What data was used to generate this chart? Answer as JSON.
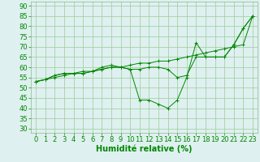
{
  "x": [
    0,
    1,
    2,
    3,
    4,
    5,
    6,
    7,
    8,
    9,
    10,
    11,
    12,
    13,
    14,
    15,
    16,
    17,
    18,
    19,
    20,
    21,
    22,
    23
  ],
  "line1": [
    53,
    54,
    55,
    56,
    57,
    57,
    58,
    59,
    60,
    60,
    61,
    62,
    62,
    63,
    63,
    64,
    65,
    66,
    67,
    68,
    69,
    70,
    71,
    85
  ],
  "line2": [
    53,
    54,
    56,
    57,
    57,
    58,
    58,
    60,
    61,
    60,
    59,
    44,
    44,
    42,
    40,
    44,
    55,
    72,
    65,
    65,
    65,
    71,
    79,
    85
  ],
  "line3": [
    53,
    54,
    56,
    57,
    57,
    57,
    58,
    59,
    60,
    60,
    59,
    59,
    60,
    60,
    59,
    55,
    56,
    65,
    65,
    65,
    65,
    71,
    79,
    85
  ],
  "bg_color": "#dff0f0",
  "line_color": "#008800",
  "grid_color": "#99cc99",
  "xlabel": "Humidité relative (%)",
  "xlim": [
    -0.5,
    23.5
  ],
  "ylim": [
    28,
    92
  ],
  "yticks": [
    30,
    35,
    40,
    45,
    50,
    55,
    60,
    65,
    70,
    75,
    80,
    85,
    90
  ],
  "xticks": [
    0,
    1,
    2,
    3,
    4,
    5,
    6,
    7,
    8,
    9,
    10,
    11,
    12,
    13,
    14,
    15,
    16,
    17,
    18,
    19,
    20,
    21,
    22,
    23
  ],
  "xlabel_fontsize": 7,
  "tick_fontsize": 6
}
